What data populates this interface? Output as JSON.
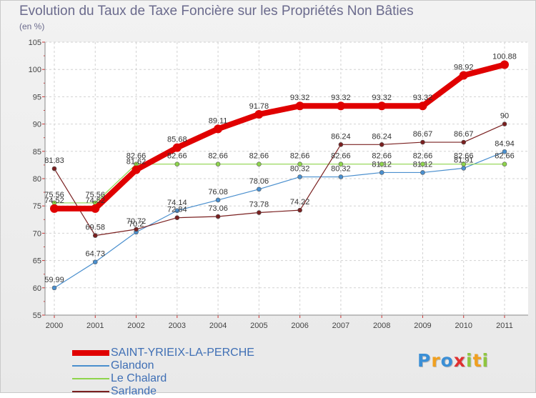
{
  "chart_data": {
    "type": "line",
    "title": "Evolution du Taux de Taxe Foncière sur les Propriétés Non Bâties",
    "ylabel": "(en %)",
    "xlabel": "",
    "categories": [
      "2000",
      "2001",
      "2002",
      "2003",
      "2004",
      "2005",
      "2006",
      "2007",
      "2008",
      "2009",
      "2010",
      "2011"
    ],
    "ylim": [
      55,
      105
    ],
    "yticks": [
      55,
      60,
      65,
      70,
      75,
      80,
      85,
      90,
      95,
      100,
      105
    ],
    "grid": "dashed horizontal and vertical",
    "series": [
      {
        "name": "SAINT-YRIEIX-LA-PERCHE",
        "color": "#e00000",
        "values": [
          74.52,
          74.52,
          81.62,
          85.68,
          89.11,
          91.78,
          93.32,
          93.32,
          93.32,
          93.32,
          98.92,
          100.88
        ],
        "labels": [
          "74.52",
          "74.52",
          "81.62",
          "85.68",
          "89.11",
          "91.78",
          "93.32",
          "93.32",
          "93.32",
          "93.32",
          "98.92",
          "100.88"
        ]
      },
      {
        "name": "Glandon",
        "color": "#4a8fce",
        "values": [
          59.99,
          64.73,
          70.2,
          74.14,
          76.08,
          78.06,
          80.32,
          80.32,
          81.12,
          81.12,
          81.91,
          84.94
        ],
        "labels": [
          "59.99",
          "64.73",
          "70.2",
          "74.14",
          "76.08",
          "78.06",
          "80.32",
          "80.32",
          "81.12",
          "81.12",
          "81.91",
          "84.94"
        ]
      },
      {
        "name": "Le Chalard",
        "color": "#8ed44c",
        "values": [
          75.56,
          75.56,
          82.66,
          82.66,
          82.66,
          82.66,
          82.66,
          82.66,
          82.66,
          82.66,
          82.66,
          82.66
        ],
        "labels": [
          "75.56",
          "75.56",
          "82.66",
          "82.66",
          "82.66",
          "82.66",
          "82.66",
          "82.66",
          "82.66",
          "82.66",
          "82.66",
          "82.66"
        ]
      },
      {
        "name": "Sarlande",
        "color": "#7a2020",
        "values": [
          81.83,
          69.58,
          70.72,
          72.84,
          73.06,
          73.78,
          74.22,
          86.24,
          86.24,
          86.67,
          86.67,
          90
        ],
        "labels": [
          "81.83",
          "69.58",
          "70.72",
          "72.84",
          "73.06",
          "73.78",
          "74.22",
          "86.24",
          "86.24",
          "86.67",
          "86.67",
          "90"
        ]
      }
    ],
    "legend_placement": "bottom-left"
  },
  "branding": {
    "letters": [
      {
        "ch": "P",
        "color": "#3b8fd6"
      },
      {
        "ch": "r",
        "color": "#f0a020"
      },
      {
        "ch": "o",
        "color": "#3b8fd6"
      },
      {
        "ch": "x",
        "color": "#e03030"
      },
      {
        "ch": "i",
        "color": "#8ec63f"
      },
      {
        "ch": "t",
        "color": "#f0a020"
      },
      {
        "ch": "i",
        "color": "#8ec63f"
      }
    ]
  }
}
